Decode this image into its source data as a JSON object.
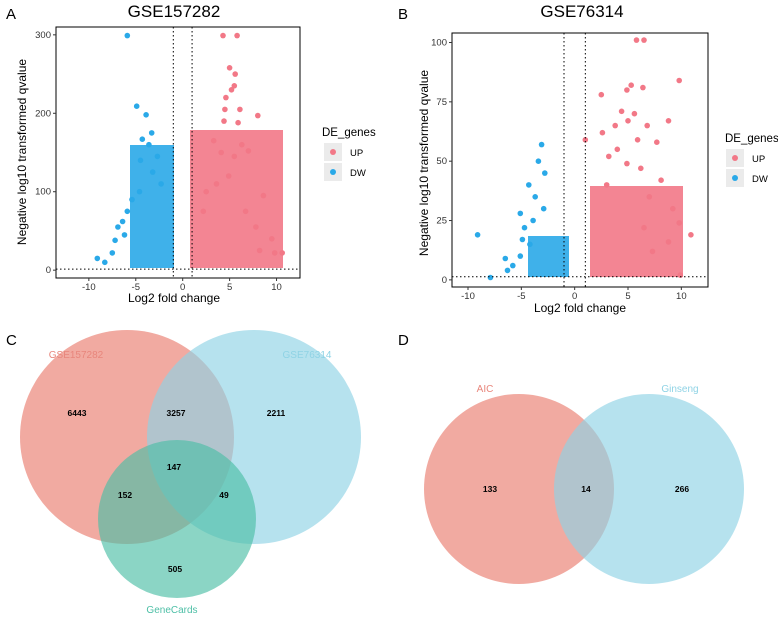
{
  "panels": [
    "A",
    "B",
    "C",
    "D"
  ],
  "colors": {
    "up": "#f27887",
    "dw": "#2aa9e8",
    "setA": "#e97c6e",
    "setB": "#8fd3e5",
    "setC": "#4dbfa6"
  },
  "chart_data": [
    {
      "type": "scatter",
      "subtype": "volcano",
      "title": "GSE157282",
      "xlabel": "Log2 fold change",
      "ylabel": "Negative log10 transformed qvalue",
      "xlim": [
        -13.5,
        12.5
      ],
      "ylim": [
        -10,
        310
      ],
      "xticks": [
        -10,
        -5,
        0,
        5,
        10
      ],
      "yticks": [
        0,
        100,
        200,
        300
      ],
      "threshold_x": [
        -1,
        1
      ],
      "threshold_y": 1.3,
      "legend": {
        "title": "DE_genes",
        "entries": [
          "UP",
          "DW"
        ]
      },
      "series": [
        {
          "name": "UP",
          "points": [
            [
              4.3,
              299
            ],
            [
              5.8,
              299
            ],
            [
              5,
              258
            ],
            [
              5.6,
              250
            ],
            [
              5.5,
              235
            ],
            [
              5.2,
              230
            ],
            [
              4.6,
              220
            ],
            [
              4.5,
              205
            ],
            [
              6.1,
              205
            ],
            [
              8,
              197
            ],
            [
              4.4,
              190
            ],
            [
              5.9,
              188
            ],
            [
              3.3,
              165
            ],
            [
              6.3,
              160
            ],
            [
              7,
              152
            ],
            [
              4.1,
              150
            ],
            [
              5.5,
              145
            ],
            [
              8.6,
              95
            ],
            [
              6.7,
              75
            ],
            [
              7.8,
              55
            ],
            [
              9.5,
              40
            ],
            [
              8.2,
              25
            ],
            [
              9.8,
              22
            ],
            [
              10.6,
              22
            ],
            [
              2.5,
              100
            ],
            [
              3.6,
              110
            ],
            [
              4.9,
              120
            ],
            [
              2.2,
              75
            ]
          ]
        },
        {
          "name": "DW",
          "points": [
            [
              -5.9,
              299
            ],
            [
              -4.9,
              209
            ],
            [
              -3.9,
              198
            ],
            [
              -3.3,
              175
            ],
            [
              -4.3,
              167
            ],
            [
              -3.6,
              160
            ],
            [
              -2.7,
              145
            ],
            [
              -4.5,
              140
            ],
            [
              -3.2,
              125
            ],
            [
              -5.4,
              90
            ],
            [
              -5.9,
              75
            ],
            [
              -6.4,
              62
            ],
            [
              -6.9,
              55
            ],
            [
              -7.2,
              38
            ],
            [
              -9.1,
              15
            ],
            [
              -8.3,
              10
            ],
            [
              -7.5,
              22
            ],
            [
              -6.2,
              45
            ],
            [
              -4.6,
              100
            ],
            [
              -2.3,
              110
            ]
          ]
        }
      ]
    },
    {
      "type": "scatter",
      "subtype": "volcano",
      "title": "GSE76314",
      "xlabel": "Log2 fold change",
      "ylabel": "Negative log10 transformed qvalue",
      "xlim": [
        -11.5,
        12.5
      ],
      "ylim": [
        -3,
        104
      ],
      "xticks": [
        -10,
        -5,
        0,
        5,
        10
      ],
      "yticks": [
        0,
        25,
        50,
        75,
        100
      ],
      "threshold_x": [
        -1,
        1
      ],
      "threshold_y": 1.3,
      "legend": {
        "title": "DE_genes",
        "entries": [
          "UP",
          "DW"
        ]
      },
      "series": [
        {
          "name": "UP",
          "points": [
            [
              5.8,
              101
            ],
            [
              6.5,
              101
            ],
            [
              9.8,
              84
            ],
            [
              5.3,
              82
            ],
            [
              6.4,
              81
            ],
            [
              4.9,
              80
            ],
            [
              2.5,
              78
            ],
            [
              4.4,
              71
            ],
            [
              5.6,
              70
            ],
            [
              3.8,
              65
            ],
            [
              6.8,
              65
            ],
            [
              8.8,
              67
            ],
            [
              5,
              67
            ],
            [
              2.6,
              62
            ],
            [
              4,
              55
            ],
            [
              7.7,
              58
            ],
            [
              5.9,
              59
            ],
            [
              1,
              59
            ],
            [
              3.2,
              52
            ],
            [
              4.9,
              49
            ],
            [
              6.2,
              47
            ],
            [
              8.1,
              42
            ],
            [
              7,
              35
            ],
            [
              9.2,
              30
            ],
            [
              9.8,
              24
            ],
            [
              10.9,
              19
            ],
            [
              9.9,
              2
            ],
            [
              7.3,
              12
            ],
            [
              6.5,
              22
            ],
            [
              8.8,
              16
            ],
            [
              3,
              40
            ]
          ]
        },
        {
          "name": "DW",
          "points": [
            [
              -3.1,
              57
            ],
            [
              -3.4,
              50
            ],
            [
              -2.8,
              45
            ],
            [
              -4.3,
              40
            ],
            [
              -3.7,
              35
            ],
            [
              -2.9,
              30
            ],
            [
              -5.1,
              28
            ],
            [
              -4.7,
              22
            ],
            [
              -9.1,
              19
            ],
            [
              -7.9,
              1
            ],
            [
              -6.3,
              4
            ],
            [
              -5.8,
              6
            ],
            [
              -5.1,
              10
            ],
            [
              -4.2,
              15
            ],
            [
              -3.9,
              25
            ],
            [
              -4.9,
              17
            ],
            [
              -6.5,
              9
            ]
          ]
        }
      ]
    },
    {
      "type": "venn",
      "sets": [
        "GSE157282",
        "GSE76314",
        "GeneCards"
      ],
      "regions": {
        "A_only": 6443,
        "B_only": 2211,
        "C_only": 505,
        "AB": 3257,
        "AC": 152,
        "BC": 49,
        "ABC": 147
      }
    },
    {
      "type": "venn",
      "sets": [
        "AIC",
        "Ginseng"
      ],
      "regions": {
        "A_only": 133,
        "B_only": 266,
        "AB": 14
      }
    }
  ]
}
